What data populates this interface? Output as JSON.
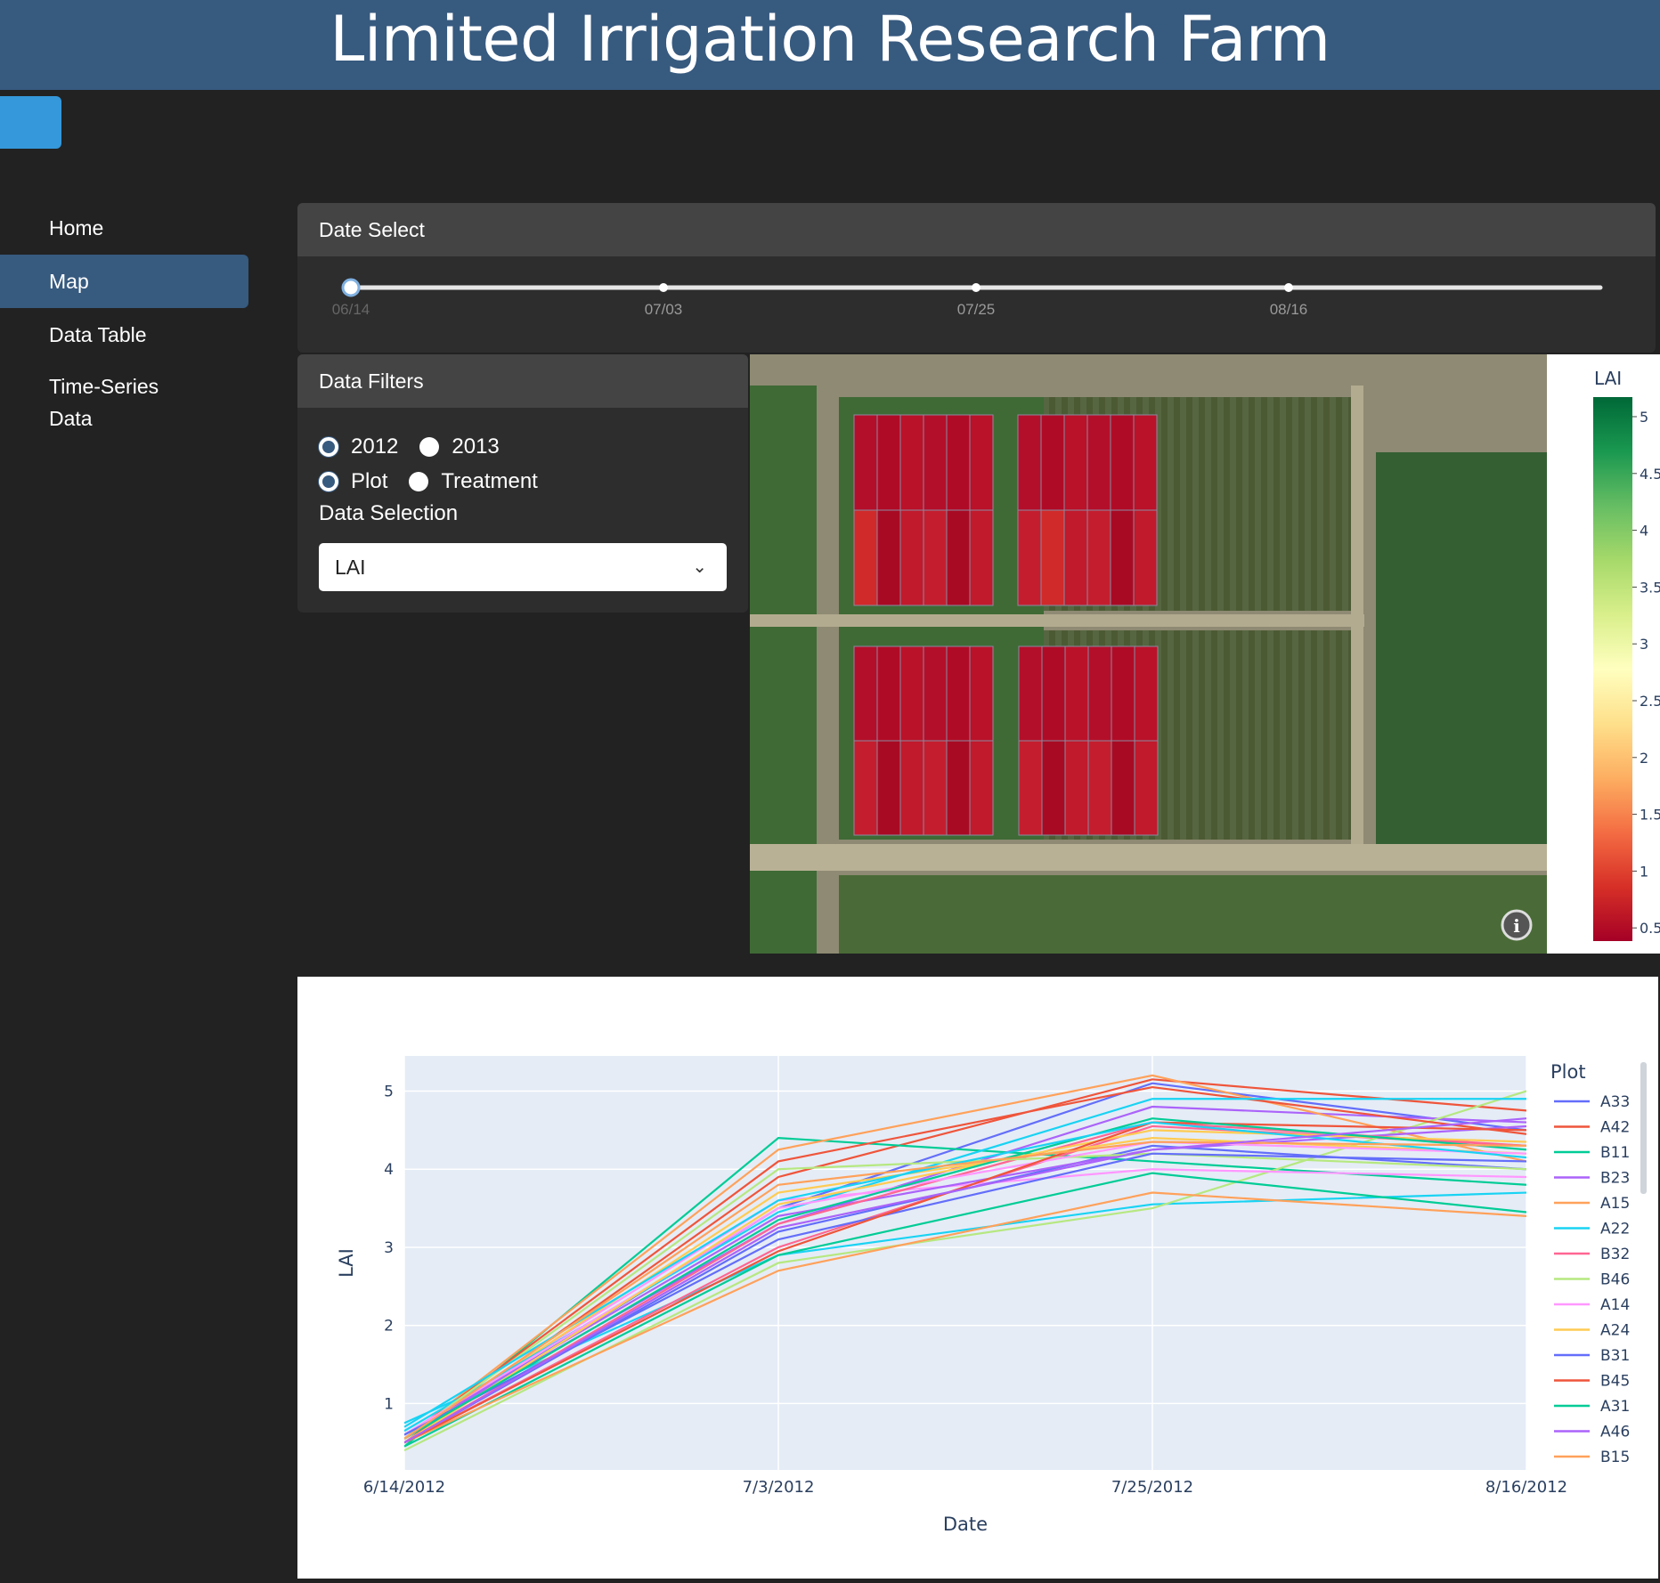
{
  "header": {
    "title": "Limited Irrigation Research Farm"
  },
  "nav": {
    "items": [
      {
        "label": "Home",
        "active": false
      },
      {
        "label": "Map",
        "active": true
      },
      {
        "label": "Data Table",
        "active": false
      },
      {
        "label": "Time-Series Data",
        "active": false
      }
    ]
  },
  "date_select": {
    "title": "Date Select",
    "marks": [
      "06/14",
      "07/03",
      "07/25",
      "08/16"
    ],
    "selected_index": 0
  },
  "filters": {
    "title": "Data Filters",
    "year_options": [
      {
        "label": "2012",
        "checked": true
      },
      {
        "label": "2013",
        "checked": false
      }
    ],
    "group_options": [
      {
        "label": "Plot",
        "checked": true
      },
      {
        "label": "Treatment",
        "checked": false
      }
    ],
    "selection_label": "Data Selection",
    "selection_value": "LAI"
  },
  "map": {
    "colorbar_title": "LAI",
    "colorbar_ticks": [
      "5",
      "4.5",
      "4",
      "3.5",
      "3",
      "2.5",
      "2",
      "1.5",
      "1",
      "0.5"
    ],
    "colorscale": [
      "#a50026",
      "#d73027",
      "#f46d43",
      "#fdae61",
      "#fee08b",
      "#ffffbf",
      "#d9ef8b",
      "#a6d96a",
      "#66bd63",
      "#1a9850",
      "#006837"
    ],
    "info_icon": "info-icon"
  },
  "chart_data": {
    "type": "line",
    "x": [
      "6/14/2012",
      "7/3/2012",
      "7/25/2012",
      "8/16/2012"
    ],
    "xlabel": "Date",
    "ylabel": "LAI",
    "ylim": [
      0.15,
      5.45
    ],
    "yticks": [
      "1",
      "2",
      "3",
      "4",
      "5"
    ],
    "legend_title": "Plot",
    "grid": true,
    "legend_position": "right",
    "series": [
      {
        "name": "A33",
        "color": "#636efa",
        "values": [
          0.55,
          3.5,
          5.1,
          4.5
        ]
      },
      {
        "name": "A42",
        "color": "#ef553b",
        "values": [
          0.5,
          3.9,
          5.15,
          4.75
        ]
      },
      {
        "name": "B11",
        "color": "#00cc96",
        "values": [
          0.45,
          4.4,
          4.1,
          3.8
        ]
      },
      {
        "name": "B23",
        "color": "#ab63fa",
        "values": [
          0.6,
          3.3,
          4.8,
          4.6
        ]
      },
      {
        "name": "A15",
        "color": "#ffa15a",
        "values": [
          0.55,
          4.25,
          5.2,
          4.1
        ]
      },
      {
        "name": "A22",
        "color": "#19d3f3",
        "values": [
          0.75,
          2.9,
          3.55,
          3.7
        ]
      },
      {
        "name": "B32",
        "color": "#ff6692",
        "values": [
          0.5,
          3.0,
          4.55,
          4.3
        ]
      },
      {
        "name": "B46",
        "color": "#b6e880",
        "values": [
          0.4,
          2.8,
          3.5,
          5.0
        ]
      },
      {
        "name": "A14",
        "color": "#ff97ff",
        "values": [
          0.6,
          3.6,
          4.0,
          3.9
        ]
      },
      {
        "name": "A24",
        "color": "#fecb52",
        "values": [
          0.55,
          3.7,
          4.4,
          4.2
        ]
      },
      {
        "name": "B31",
        "color": "#636efa",
        "values": [
          0.5,
          3.2,
          4.3,
          4.0
        ]
      },
      {
        "name": "B45",
        "color": "#ef553b",
        "values": [
          0.55,
          4.1,
          5.05,
          4.45
        ]
      },
      {
        "name": "A31",
        "color": "#00cc96",
        "values": [
          0.45,
          2.9,
          3.95,
          3.45
        ]
      },
      {
        "name": "A46",
        "color": "#ab63fa",
        "values": [
          0.6,
          3.4,
          4.25,
          4.55
        ]
      },
      {
        "name": "B15",
        "color": "#ffa15a",
        "values": [
          0.5,
          2.7,
          3.7,
          3.4
        ]
      },
      {
        "name": "",
        "color": "#19d3f3",
        "values": [
          0.65,
          3.45,
          4.9,
          4.9
        ]
      },
      {
        "name": "",
        "color": "#ff6692",
        "values": [
          0.5,
          3.3,
          4.6,
          4.3
        ]
      },
      {
        "name": "",
        "color": "#b6e880",
        "values": [
          0.55,
          4.0,
          4.2,
          4.0
        ]
      },
      {
        "name": "",
        "color": "#ff97ff",
        "values": [
          0.6,
          3.5,
          4.35,
          4.2
        ]
      },
      {
        "name": "",
        "color": "#fecb52",
        "values": [
          0.5,
          3.55,
          4.5,
          4.35
        ]
      },
      {
        "name": "",
        "color": "#636efa",
        "values": [
          0.6,
          3.1,
          4.2,
          4.1
        ]
      },
      {
        "name": "",
        "color": "#ef553b",
        "values": [
          0.5,
          2.95,
          4.6,
          4.5
        ]
      },
      {
        "name": "",
        "color": "#00cc96",
        "values": [
          0.55,
          3.35,
          4.65,
          4.25
        ]
      },
      {
        "name": "",
        "color": "#19d3f3",
        "values": [
          0.7,
          3.6,
          4.6,
          4.15
        ]
      },
      {
        "name": "",
        "color": "#ffa15a",
        "values": [
          0.55,
          3.8,
          4.35,
          4.3
        ]
      },
      {
        "name": "",
        "color": "#ab63fa",
        "values": [
          0.5,
          3.25,
          4.25,
          4.65
        ]
      }
    ]
  }
}
